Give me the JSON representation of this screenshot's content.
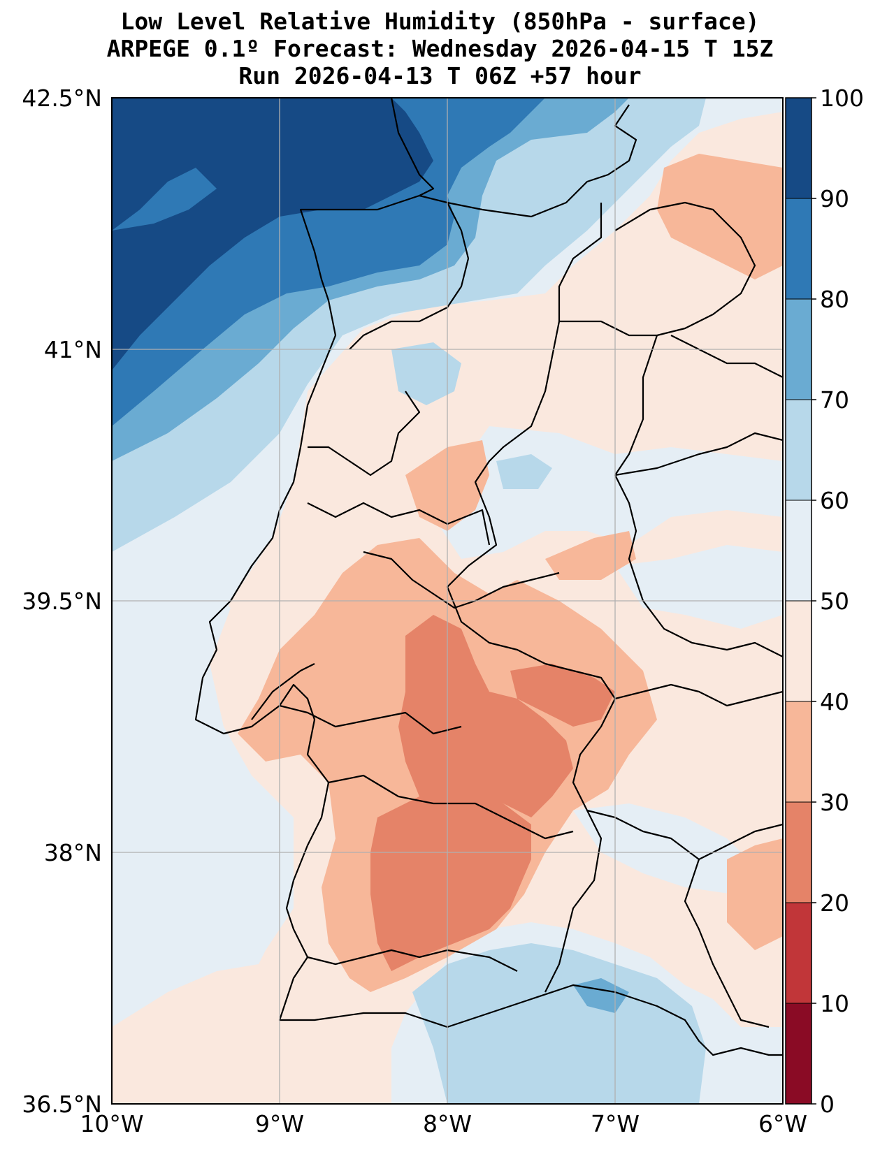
{
  "title": {
    "line1": "Low Level Relative Humidity (850hPa - surface)",
    "line2": "ARPEGE 0.1º Forecast: Wednesday 2026-04-15 T 15Z",
    "line3": "Run 2026-04-13 T 06Z +57 hour"
  },
  "map": {
    "lon_range": [
      -10,
      -6
    ],
    "lat_range": [
      36.5,
      42.5
    ],
    "lat_ticks": [
      {
        "value": 42.5,
        "label": "42.5°N"
      },
      {
        "value": 41.0,
        "label": "41°N"
      },
      {
        "value": 39.5,
        "label": "39.5°N"
      },
      {
        "value": 38.0,
        "label": "38°N"
      },
      {
        "value": 36.5,
        "label": "36.5°N"
      }
    ],
    "lon_ticks": [
      {
        "value": -10,
        "label": "10°W"
      },
      {
        "value": -9,
        "label": "9°W"
      },
      {
        "value": -8,
        "label": "8°W"
      },
      {
        "value": -7,
        "label": "7°W"
      },
      {
        "value": -6,
        "label": "6°W"
      }
    ],
    "grid": true
  },
  "colorbar": {
    "levels": [
      0,
      10,
      20,
      30,
      40,
      50,
      60,
      70,
      80,
      90,
      100
    ],
    "labels": [
      "0",
      "10",
      "20",
      "30",
      "40",
      "50",
      "60",
      "70",
      "80",
      "90",
      "100"
    ],
    "colors": [
      "#8a0b25",
      "#c13639",
      "#e58368",
      "#f7b799",
      "#fae8de",
      "#e5eef5",
      "#b7d8ea",
      "#6aabd2",
      "#2f79b5",
      "#164a85"
    ]
  }
}
